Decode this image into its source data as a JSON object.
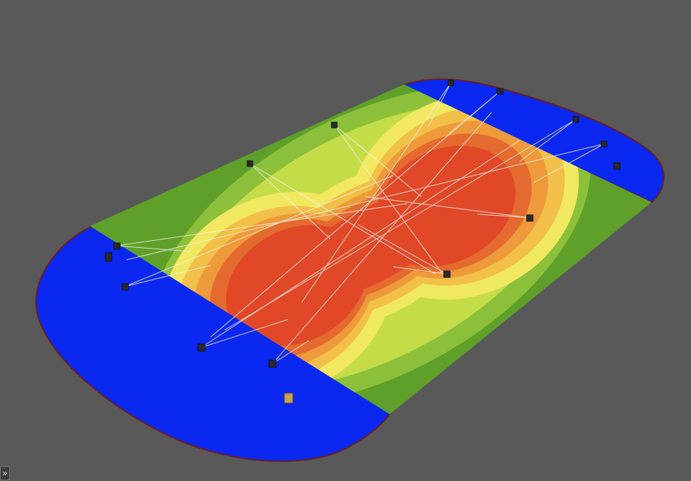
{
  "button": {
    "label": "»"
  }
}
